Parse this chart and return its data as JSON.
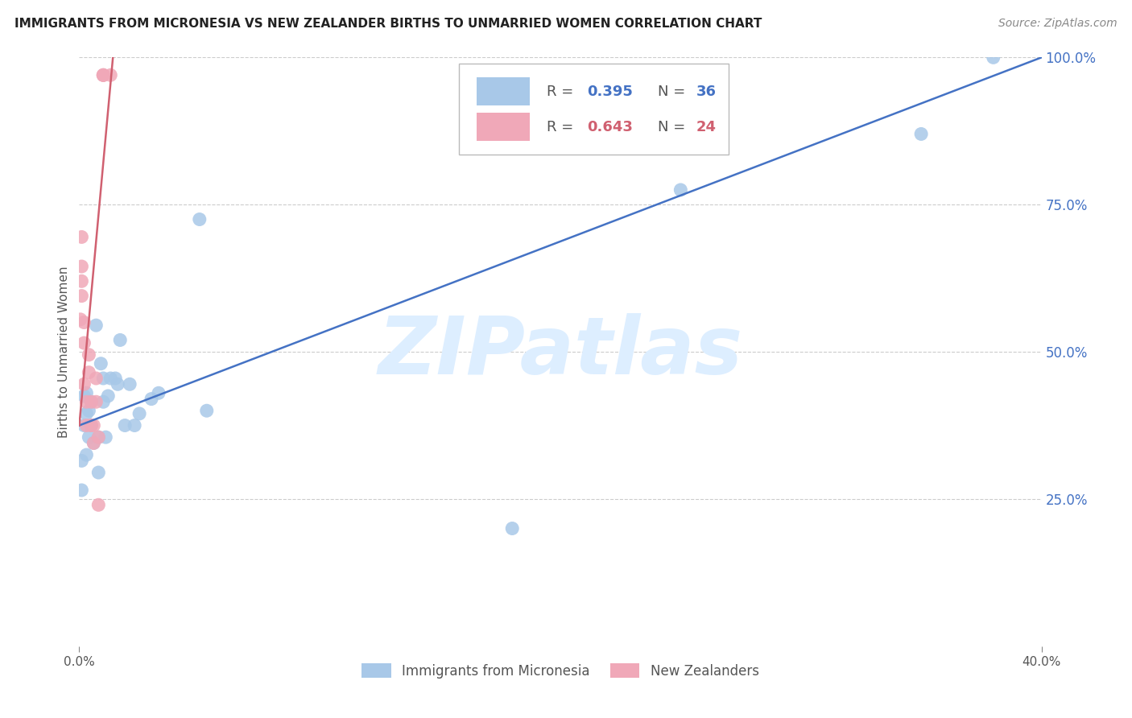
{
  "title": "IMMIGRANTS FROM MICRONESIA VS NEW ZEALANDER BIRTHS TO UNMARRIED WOMEN CORRELATION CHART",
  "source": "Source: ZipAtlas.com",
  "ylabel": "Births to Unmarried Women",
  "blue_label": "Immigrants from Micronesia",
  "pink_label": "New Zealanders",
  "blue_R": 0.395,
  "blue_N": 36,
  "pink_R": 0.643,
  "pink_N": 24,
  "xmin": 0.0,
  "xmax": 0.4,
  "ymin": 0.0,
  "ymax": 1.0,
  "xtick_positions": [
    0.0,
    0.4
  ],
  "xtick_labels": [
    "0.0%",
    "40.0%"
  ],
  "ytick_positions": [
    0.25,
    0.5,
    0.75,
    1.0
  ],
  "ytick_labels_right": [
    "25.0%",
    "50.0%",
    "75.0%",
    "100.0%"
  ],
  "blue_color": "#a8c8e8",
  "pink_color": "#f0a8b8",
  "blue_line_color": "#4472c4",
  "pink_line_color": "#d06070",
  "watermark": "ZIPatlas",
  "watermark_color": "#ddeeff",
  "blue_scatter_x": [
    0.001,
    0.001,
    0.002,
    0.002,
    0.003,
    0.003,
    0.003,
    0.004,
    0.004,
    0.005,
    0.005,
    0.006,
    0.007,
    0.008,
    0.008,
    0.009,
    0.01,
    0.01,
    0.011,
    0.012,
    0.013,
    0.015,
    0.016,
    0.017,
    0.019,
    0.021,
    0.023,
    0.025,
    0.03,
    0.033,
    0.05,
    0.053,
    0.18,
    0.25,
    0.35,
    0.38
  ],
  "blue_scatter_y": [
    0.265,
    0.315,
    0.375,
    0.425,
    0.325,
    0.395,
    0.43,
    0.355,
    0.4,
    0.375,
    0.415,
    0.345,
    0.545,
    0.295,
    0.355,
    0.48,
    0.415,
    0.455,
    0.355,
    0.425,
    0.455,
    0.455,
    0.445,
    0.52,
    0.375,
    0.445,
    0.375,
    0.395,
    0.42,
    0.43,
    0.725,
    0.4,
    0.2,
    0.775,
    0.87,
    1.0
  ],
  "pink_scatter_x": [
    0.0005,
    0.001,
    0.001,
    0.001,
    0.001,
    0.002,
    0.002,
    0.002,
    0.003,
    0.003,
    0.004,
    0.004,
    0.005,
    0.005,
    0.006,
    0.006,
    0.007,
    0.007,
    0.008,
    0.008,
    0.01,
    0.01,
    0.01,
    0.013
  ],
  "pink_scatter_y": [
    0.555,
    0.595,
    0.62,
    0.645,
    0.695,
    0.445,
    0.515,
    0.55,
    0.375,
    0.415,
    0.465,
    0.495,
    0.375,
    0.415,
    0.345,
    0.375,
    0.415,
    0.455,
    0.355,
    0.24,
    0.97,
    0.97,
    0.97,
    0.97
  ],
  "blue_line_x": [
    0.0,
    0.4
  ],
  "blue_line_y": [
    0.375,
    1.0
  ],
  "pink_line_x": [
    0.0,
    0.014
  ],
  "pink_line_y": [
    0.375,
    1.0
  ]
}
